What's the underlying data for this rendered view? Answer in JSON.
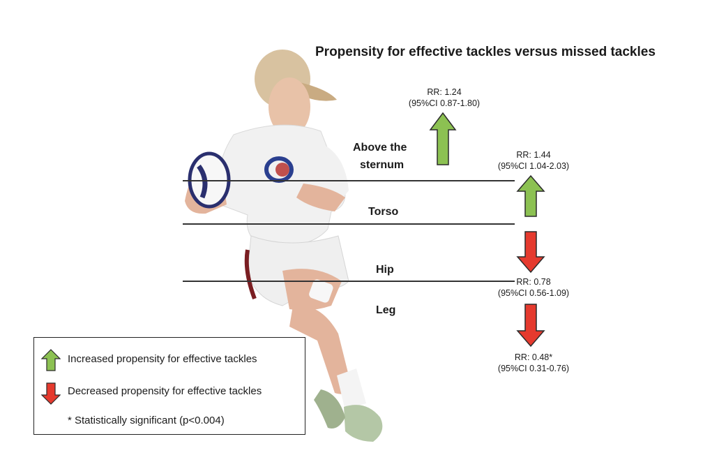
{
  "title": "Propensity for effective tackles versus missed tackles",
  "figure": {
    "description_image": "rugby-player-carrying-ball"
  },
  "zones": {
    "above_sternum_line1": "Above the",
    "above_sternum_line2": "sternum",
    "torso": "Torso",
    "hip": "Hip",
    "leg": "Leg"
  },
  "estimates": [
    {
      "zone": "Above the sternum",
      "rr": "RR: 1.24",
      "ci": "(95%CI 0.87-1.80)",
      "direction": "increase"
    },
    {
      "zone": "Torso",
      "rr": "RR: 1.44",
      "ci": "(95%CI 1.04-2.03)",
      "direction": "increase"
    },
    {
      "zone": "Hip",
      "rr": "RR: 0.78",
      "ci": "(95%CI 0.56-1.09)",
      "direction": "decrease"
    },
    {
      "zone": "Leg",
      "rr": "RR: 0.48*",
      "ci": "(95%CI 0.31-0.76)",
      "direction": "decrease"
    }
  ],
  "legend": {
    "increase": "Increased propensity for effective tackles",
    "decrease": "Decreased propensity for effective tackles",
    "note": "* Statistically significant (p<0.004)"
  },
  "colors": {
    "increase_fill": "#8cc152",
    "decrease_fill": "#e53a2e",
    "arrow_stroke": "#2b2b2b"
  }
}
